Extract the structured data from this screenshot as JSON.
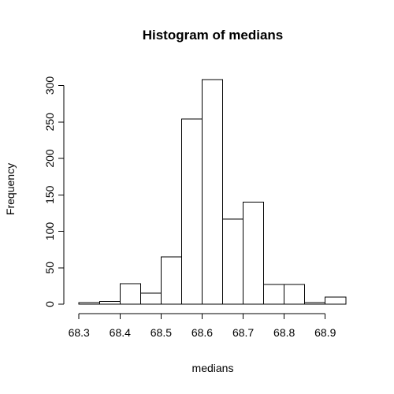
{
  "chart_data": {
    "type": "bar",
    "title": "Histogram of medians",
    "xlabel": "medians",
    "ylabel": "Frequency",
    "bins": [
      {
        "start": 68.3,
        "end": 68.35,
        "count": 2
      },
      {
        "start": 68.35,
        "end": 68.4,
        "count": 4
      },
      {
        "start": 68.4,
        "end": 68.45,
        "count": 28
      },
      {
        "start": 68.45,
        "end": 68.5,
        "count": 15
      },
      {
        "start": 68.5,
        "end": 68.55,
        "count": 65
      },
      {
        "start": 68.55,
        "end": 68.6,
        "count": 254
      },
      {
        "start": 68.6,
        "end": 68.65,
        "count": 308
      },
      {
        "start": 68.65,
        "end": 68.7,
        "count": 117
      },
      {
        "start": 68.7,
        "end": 68.75,
        "count": 140
      },
      {
        "start": 68.75,
        "end": 68.8,
        "count": 27
      },
      {
        "start": 68.8,
        "end": 68.85,
        "count": 27
      },
      {
        "start": 68.85,
        "end": 68.9,
        "count": 2
      },
      {
        "start": 68.9,
        "end": 68.95,
        "count": 10
      }
    ],
    "xlim": [
      68.29,
      68.96
    ],
    "ylim": [
      0,
      320
    ],
    "xticks": [
      68.3,
      68.4,
      68.5,
      68.6,
      68.7,
      68.8,
      68.9
    ],
    "xtick_labels": [
      "68.3",
      "68.4",
      "68.5",
      "68.6",
      "68.7",
      "68.8",
      "68.9"
    ],
    "yticks": [
      0,
      50,
      100,
      150,
      200,
      250,
      300
    ],
    "ytick_labels": [
      "0",
      "50",
      "100",
      "150",
      "200",
      "250",
      "300"
    ],
    "grid": false,
    "legend": false,
    "colors": {
      "bar_fill": "#ffffff",
      "bar_stroke": "#000000"
    }
  }
}
